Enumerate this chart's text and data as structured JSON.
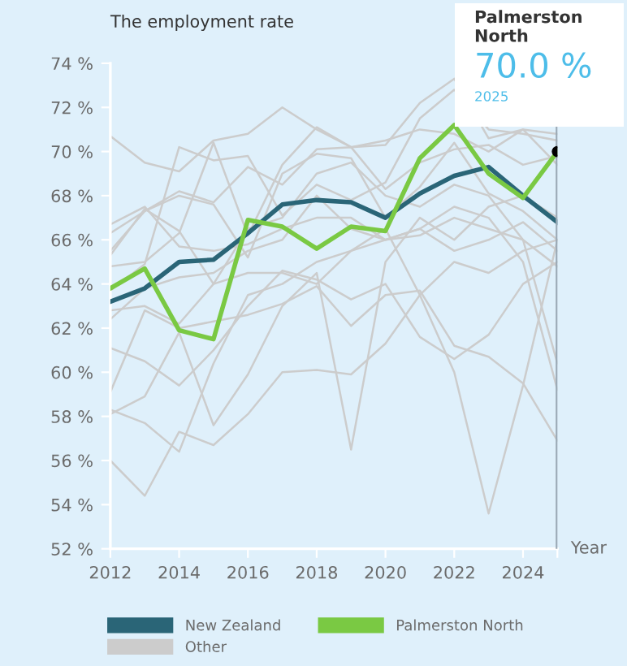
{
  "chart_data": {
    "type": "line",
    "title": "The employment rate",
    "xlabel": "Year",
    "x": [
      2012,
      2013,
      2014,
      2015,
      2016,
      2017,
      2018,
      2019,
      2020,
      2021,
      2022,
      2023,
      2024,
      2025
    ],
    "xlim": [
      2012,
      2025
    ],
    "xticks": [
      2012,
      2014,
      2016,
      2018,
      2020,
      2022,
      2024,
      {
        "value": 2025,
        "label": null
      }
    ],
    "ylim": [
      52,
      74
    ],
    "yticks": [
      {
        "value": 52,
        "label": "52 %"
      },
      {
        "value": 54,
        "label": "54 %"
      },
      {
        "value": 56,
        "label": "56 %"
      },
      {
        "value": 58,
        "label": "58 %"
      },
      {
        "value": 60,
        "label": "60 %"
      },
      {
        "value": 62,
        "label": "62 %"
      },
      {
        "value": 64,
        "label": "64 %"
      },
      {
        "value": 66,
        "label": "66 %"
      },
      {
        "value": 68,
        "label": "68 %"
      },
      {
        "value": 70,
        "label": "70 %"
      },
      {
        "value": 72,
        "label": "72 %"
      },
      {
        "value": 74,
        "label": "74 %"
      }
    ],
    "grid": false,
    "legend": "bottom",
    "marker": "none",
    "line_style": "solid",
    "ref_lines": [
      {
        "axis": "x",
        "value": 2025,
        "color": "#9aa9b5"
      }
    ],
    "annotations": [
      {
        "text": "Palmerston North\n70.0 %\n2025",
        "x": 2025,
        "y": 70
      }
    ],
    "series": [
      {
        "name": "Other",
        "color": "#cccccc",
        "values": [
          56.0,
          54.4,
          57.3,
          56.7,
          58.1,
          60.0,
          60.1,
          59.9,
          61.3,
          63.5,
          65.0,
          64.5,
          65.5,
          66.0
        ]
      },
      {
        "color": "#cccccc",
        "values": [
          58.3,
          57.7,
          56.4,
          60.4,
          63.5,
          64.0,
          65.0,
          65.5,
          66.0,
          66.5,
          65.5,
          66.0,
          66.8,
          65.5
        ]
      },
      {
        "color": "#cccccc",
        "values": [
          58.1,
          58.9,
          61.8,
          57.6,
          59.9,
          63.0,
          64.5,
          56.5,
          65.0,
          67.0,
          66.0,
          67.5,
          68.0,
          67.0
        ]
      },
      {
        "color": "#cccccc",
        "values": [
          61.1,
          60.5,
          59.4,
          61.0,
          63.0,
          64.6,
          64.2,
          63.3,
          64.0,
          61.6,
          60.6,
          61.7,
          64.0,
          65.0
        ]
      },
      {
        "color": "#cccccc",
        "values": [
          59.1,
          62.8,
          62.0,
          62.3,
          62.6,
          63.1,
          63.9,
          62.1,
          63.5,
          63.7,
          61.2,
          60.7,
          59.5,
          56.9
        ]
      },
      {
        "color": "#cccccc",
        "values": [
          62.8,
          63.0,
          62.2,
          64.0,
          64.5,
          64.5,
          64.0,
          65.5,
          66.5,
          63.5,
          60.0,
          53.6,
          59.4,
          66.0
        ]
      },
      {
        "color": "#cccccc",
        "values": [
          62.4,
          63.8,
          64.3,
          64.5,
          65.5,
          66.0,
          68.0,
          66.5,
          66.0,
          66.5,
          67.5,
          67.0,
          65.0,
          59.2
        ]
      },
      {
        "color": "#cccccc",
        "values": [
          65.3,
          67.4,
          66.4,
          64.0,
          66.5,
          67.0,
          69.0,
          69.5,
          68.0,
          67.5,
          68.5,
          68.0,
          66.0,
          60.4
        ]
      },
      {
        "color": "#cccccc",
        "values": [
          66.7,
          67.5,
          65.7,
          65.5,
          65.8,
          66.5,
          67.0,
          67.0,
          66.0,
          66.2,
          67.0,
          66.5,
          66.0,
          64.8
        ]
      },
      {
        "color": "#cccccc",
        "values": [
          70.7,
          69.5,
          69.1,
          70.5,
          70.8,
          72.0,
          71.0,
          70.2,
          70.5,
          71.0,
          70.8,
          70.0,
          71.0,
          70.8
        ]
      },
      {
        "color": "#cccccc",
        "values": [
          65.5,
          67.3,
          68.2,
          67.7,
          69.3,
          68.5,
          70.1,
          70.2,
          68.3,
          69.5,
          70.1,
          70.3,
          69.4,
          69.8
        ]
      },
      {
        "color": "#cccccc",
        "values": [
          64.8,
          65.0,
          66.3,
          70.4,
          66.2,
          69.4,
          71.1,
          70.2,
          70.3,
          72.2,
          73.3,
          70.6,
          71.0,
          69.4
        ]
      },
      {
        "color": "#cccccc",
        "values": [
          66.3,
          67.3,
          68.0,
          67.6,
          65.2,
          69.0,
          69.9,
          69.7,
          67.0,
          68.4,
          70.4,
          68.1,
          67.3,
          66.0
        ]
      },
      {
        "color": "#cccccc",
        "values": [
          63.7,
          64.9,
          70.2,
          69.6,
          69.8,
          67.1,
          68.5,
          67.8,
          68.6,
          71.5,
          72.8,
          71.0,
          70.8,
          70.5
        ]
      },
      {
        "name": "New Zealand",
        "color": "#2a6577",
        "values": [
          63.2,
          63.8,
          65.0,
          65.1,
          66.3,
          67.6,
          67.8,
          67.7,
          67.0,
          68.1,
          68.9,
          69.3,
          68.0,
          66.8
        ]
      },
      {
        "name": "Palmerston North",
        "color": "#7ac943",
        "values": [
          63.8,
          64.7,
          61.9,
          61.5,
          66.9,
          66.6,
          65.6,
          66.6,
          66.4,
          69.7,
          71.2,
          69.0,
          67.9,
          70.0
        ]
      }
    ]
  }
}
